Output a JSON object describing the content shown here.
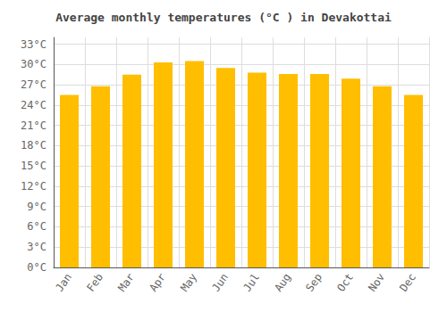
{
  "chart_data": {
    "type": "bar",
    "title": "Average monthly temperatures (°C ) in Devakottai",
    "categories": [
      "Jan",
      "Feb",
      "Mar",
      "Apr",
      "May",
      "Jun",
      "Jul",
      "Aug",
      "Sep",
      "Oct",
      "Nov",
      "Dec"
    ],
    "values": [
      25.5,
      26.8,
      28.5,
      30.3,
      30.5,
      29.5,
      28.8,
      28.6,
      28.6,
      27.9,
      26.8,
      25.5
    ],
    "color": "#FFBE00",
    "ylim": [
      0,
      34
    ],
    "yticks": [
      {
        "value": 0,
        "label": "0°C"
      },
      {
        "value": 3,
        "label": "3°C"
      },
      {
        "value": 6,
        "label": "6°C"
      },
      {
        "value": 9,
        "label": "9°C"
      },
      {
        "value": 12,
        "label": "12°C"
      },
      {
        "value": 15,
        "label": "15°C"
      },
      {
        "value": 18,
        "label": "18°C"
      },
      {
        "value": 21,
        "label": "21°C"
      },
      {
        "value": 24,
        "label": "24°C"
      },
      {
        "value": 27,
        "label": "27°C"
      },
      {
        "value": 30,
        "label": "30°C"
      },
      {
        "value": 33,
        "label": "33°C"
      }
    ],
    "grid": true
  }
}
